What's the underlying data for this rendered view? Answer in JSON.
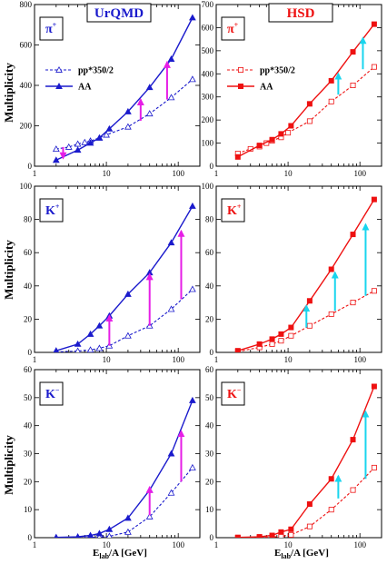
{
  "y_axis_label": "Multiplicity",
  "x_axis_label_main": "E",
  "x_axis_label_sub": "lab",
  "x_axis_label_rest": "/A [GeV]",
  "models": [
    {
      "name": "UrQMD",
      "color": "#1a1acc",
      "arrow_color": "#e61ee6",
      "marker": "triangle"
    },
    {
      "name": "HSD",
      "color": "#ee1111",
      "arrow_color": "#19d5ee",
      "marker": "square"
    }
  ],
  "legend": {
    "pp": "pp*350/2",
    "aa": "AA"
  },
  "particles": [
    {
      "label": "π",
      "sup": "+"
    },
    {
      "label": "K",
      "sup": "+"
    },
    {
      "label": "K",
      "sup": "−"
    }
  ],
  "chart_data": [
    {
      "type": "line",
      "model": "UrQMD",
      "particle": "π+",
      "xscale": "log",
      "xlim": [
        1,
        200
      ],
      "ylim": [
        0,
        800
      ],
      "xticks": [
        "1",
        "10",
        "100"
      ],
      "yticks": [
        0,
        200,
        400,
        600,
        800
      ],
      "ylabel": "Multiplicity",
      "xlabel": "",
      "series": [
        {
          "name": "pp*350/2",
          "x": [
            2,
            3,
            4,
            5,
            6,
            8,
            10,
            20,
            40,
            80,
            158
          ],
          "y": [
            85,
            95,
            110,
            118,
            125,
            140,
            155,
            195,
            260,
            340,
            430
          ]
        },
        {
          "name": "AA",
          "x": [
            2,
            4,
            6,
            8,
            11,
            20,
            40,
            80,
            158
          ],
          "y": [
            30,
            80,
            115,
            140,
            185,
            270,
            390,
            530,
            735
          ]
        }
      ],
      "arrows": [
        {
          "x": 2.5,
          "from": 95,
          "to": 40
        },
        {
          "x": 30,
          "from": 225,
          "to": 330
        },
        {
          "x": 70,
          "from": 330,
          "to": 515
        }
      ]
    },
    {
      "type": "line",
      "model": "HSD",
      "particle": "π+",
      "xscale": "log",
      "xlim": [
        1,
        200
      ],
      "ylim": [
        0,
        700
      ],
      "xticks": [
        "1",
        "10",
        "100"
      ],
      "yticks": [
        0,
        100,
        200,
        300,
        400,
        500,
        600,
        700
      ],
      "ylabel": "",
      "xlabel": "",
      "series": [
        {
          "name": "pp*350/2",
          "x": [
            2,
            3,
            4,
            5,
            6,
            8,
            10,
            20,
            40,
            80,
            158
          ],
          "y": [
            55,
            75,
            85,
            100,
            110,
            125,
            145,
            195,
            280,
            350,
            430
          ]
        },
        {
          "name": "AA",
          "x": [
            2,
            4,
            6,
            8,
            11,
            20,
            40,
            80,
            158
          ],
          "y": [
            40,
            90,
            115,
            140,
            175,
            270,
            370,
            495,
            615
          ]
        }
      ],
      "arrows": [
        {
          "x": 50,
          "from": 310,
          "to": 400
        },
        {
          "x": 110,
          "from": 420,
          "to": 555
        }
      ]
    },
    {
      "type": "line",
      "model": "UrQMD",
      "particle": "K+",
      "xscale": "log",
      "xlim": [
        1,
        200
      ],
      "ylim": [
        0,
        100
      ],
      "xticks": [
        "1",
        "10",
        "100"
      ],
      "yticks": [
        0,
        20,
        40,
        60,
        80,
        100
      ],
      "ylabel": "Multiplicity",
      "xlabel": "",
      "series": [
        {
          "name": "pp*350/2",
          "x": [
            2,
            4,
            6,
            8,
            11,
            20,
            40,
            80,
            158
          ],
          "y": [
            0.3,
            0.8,
            1.5,
            2.5,
            4,
            10,
            16,
            26,
            38
          ]
        },
        {
          "name": "AA",
          "x": [
            2,
            4,
            6,
            8,
            11,
            20,
            40,
            80,
            158
          ],
          "y": [
            1,
            5,
            11,
            16,
            22,
            35,
            48,
            66,
            88
          ]
        }
      ],
      "arrows": [
        {
          "x": 11,
          "from": 4,
          "to": 22
        },
        {
          "x": 40,
          "from": 16,
          "to": 47
        },
        {
          "x": 110,
          "from": 32,
          "to": 73
        }
      ]
    },
    {
      "type": "line",
      "model": "HSD",
      "particle": "K+",
      "xscale": "log",
      "xlim": [
        1,
        200
      ],
      "ylim": [
        0,
        100
      ],
      "xticks": [
        "1",
        "10",
        "100"
      ],
      "yticks": [
        0,
        20,
        40,
        60,
        80,
        100
      ],
      "ylabel": "",
      "xlabel": "",
      "series": [
        {
          "name": "pp*350/2",
          "x": [
            2,
            4,
            6,
            8,
            11,
            20,
            40,
            80,
            158
          ],
          "y": [
            0.5,
            3,
            5,
            7,
            10,
            16,
            23,
            30,
            37
          ]
        },
        {
          "name": "AA",
          "x": [
            2,
            4,
            6,
            8,
            11,
            20,
            40,
            80,
            158
          ],
          "y": [
            1,
            5,
            8,
            11,
            15,
            31,
            50,
            71,
            92
          ]
        }
      ],
      "arrows": [
        {
          "x": 18,
          "from": 15,
          "to": 28
        },
        {
          "x": 45,
          "from": 25,
          "to": 48
        },
        {
          "x": 120,
          "from": 34,
          "to": 77
        }
      ]
    },
    {
      "type": "line",
      "model": "UrQMD",
      "particle": "K−",
      "xscale": "log",
      "xlim": [
        1,
        200
      ],
      "ylim": [
        0,
        60
      ],
      "xticks": [
        "1",
        "10",
        "100"
      ],
      "yticks": [
        0,
        10,
        20,
        30,
        40,
        50,
        60
      ],
      "ylabel": "Multiplicity",
      "xlabel": "Elab/A [GeV]",
      "series": [
        {
          "name": "pp*350/2",
          "x": [
            2,
            4,
            6,
            8,
            11,
            20,
            40,
            80,
            158
          ],
          "y": [
            0,
            0,
            0.1,
            0.2,
            0.5,
            2,
            7.5,
            16,
            25
          ]
        },
        {
          "name": "AA",
          "x": [
            2,
            4,
            6,
            8,
            11,
            20,
            40,
            80,
            158
          ],
          "y": [
            0.1,
            0.3,
            0.8,
            1.5,
            3,
            7,
            17,
            30,
            49
          ]
        }
      ],
      "arrows": [
        {
          "x": 40,
          "from": 8,
          "to": 18
        },
        {
          "x": 110,
          "from": 20,
          "to": 38
        }
      ]
    },
    {
      "type": "line",
      "model": "HSD",
      "particle": "K−",
      "xscale": "log",
      "xlim": [
        1,
        200
      ],
      "ylim": [
        0,
        60
      ],
      "xticks": [
        "1",
        "10",
        "100"
      ],
      "yticks": [
        0,
        10,
        20,
        30,
        40,
        50,
        60
      ],
      "ylabel": "",
      "xlabel": "Elab/A [GeV]",
      "series": [
        {
          "name": "pp*350/2",
          "x": [
            2,
            4,
            6,
            8,
            11,
            20,
            40,
            80,
            158
          ],
          "y": [
            0,
            0.1,
            0.2,
            0.5,
            1,
            4,
            10,
            17,
            25
          ]
        },
        {
          "name": "AA",
          "x": [
            2,
            4,
            6,
            8,
            11,
            20,
            40,
            80,
            158
          ],
          "y": [
            0.1,
            0.3,
            0.8,
            2,
            3,
            12,
            21,
            35,
            54
          ]
        }
      ],
      "arrows": [
        {
          "x": 50,
          "from": 14,
          "to": 22
        },
        {
          "x": 120,
          "from": 21,
          "to": 45
        }
      ]
    }
  ]
}
